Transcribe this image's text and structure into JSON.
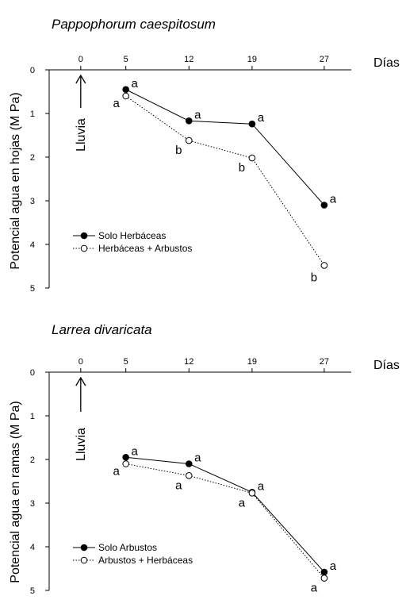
{
  "chart_data": [
    {
      "type": "line",
      "title": "Pappophorum caespitosum",
      "xlabel": "Días",
      "ylabel": "Potencial agua en hojas (M Pa)",
      "xticks": [
        0,
        5,
        12,
        19,
        27
      ],
      "yticks": [
        0,
        1,
        2,
        3,
        4,
        5
      ],
      "xlim": [
        -3.5,
        30
      ],
      "ylim": [
        0,
        5
      ],
      "y_inverted": true,
      "arrow_label": "Lluvia",
      "arrow_x": 0,
      "legend_position": "left",
      "series": [
        {
          "name": "Solo Herbáceas",
          "marker": "filled",
          "line": "solid",
          "x": [
            5,
            12,
            19,
            27
          ],
          "y": [
            0.45,
            1.17,
            1.24,
            3.1
          ],
          "labels": [
            "a",
            "a",
            "a",
            "a"
          ]
        },
        {
          "name": "Herbáceas + Arbustos",
          "marker": "open",
          "line": "dotted",
          "x": [
            5,
            12,
            19,
            27
          ],
          "y": [
            0.6,
            1.62,
            2.02,
            4.48
          ],
          "labels": [
            "a",
            "b",
            "b",
            "b"
          ]
        }
      ]
    },
    {
      "type": "line",
      "title": "Larrea divaricata",
      "xlabel": "Días",
      "ylabel": "Potencial agua en ramas (M Pa)",
      "xticks": [
        0,
        5,
        12,
        19,
        27
      ],
      "yticks": [
        0,
        1,
        2,
        3,
        4,
        5
      ],
      "xlim": [
        -3.5,
        30
      ],
      "ylim": [
        0,
        5
      ],
      "y_inverted": true,
      "arrow_label": "Lluvia",
      "arrow_x": 0,
      "legend_position": "left",
      "series": [
        {
          "name": "Solo Arbustos",
          "marker": "filled",
          "line": "solid",
          "x": [
            5,
            12,
            19,
            27
          ],
          "y": [
            1.95,
            2.1,
            2.75,
            4.58
          ],
          "labels": [
            "a",
            "a",
            "a",
            "a"
          ]
        },
        {
          "name": "Arbustos + Herbáceas",
          "marker": "open",
          "line": "dotted",
          "x": [
            5,
            12,
            19,
            27
          ],
          "y": [
            2.1,
            2.37,
            2.77,
            4.72
          ],
          "labels": [
            "a",
            "a",
            "a",
            "a"
          ]
        }
      ]
    }
  ]
}
